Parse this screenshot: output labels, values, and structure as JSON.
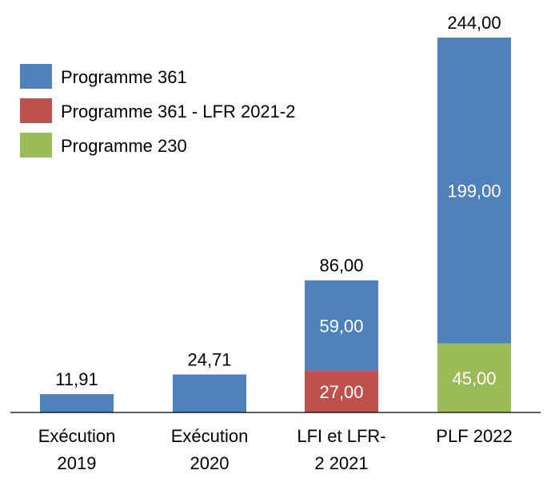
{
  "chart_data": {
    "type": "bar",
    "stacked": true,
    "categories": [
      [
        "Exécution",
        "2019"
      ],
      [
        "Exécution",
        "2020"
      ],
      [
        "LFI et LFR-",
        "2 2021"
      ],
      [
        "PLF 2022"
      ]
    ],
    "series": [
      {
        "name": "Programme 230",
        "color": "#9BBB59",
        "values": [
          0,
          0,
          0,
          45.0
        ],
        "labels": [
          "",
          "",
          "",
          "45,00"
        ]
      },
      {
        "name": "Programme 361 - LFR 2021-2",
        "color": "#C0504D",
        "values": [
          0,
          0,
          27.0,
          0
        ],
        "labels": [
          "",
          "",
          "27,00",
          ""
        ]
      },
      {
        "name": "Programme 361",
        "color": "#4F81BD",
        "values": [
          11.91,
          24.71,
          59.0,
          199.0
        ],
        "labels": [
          "",
          "",
          "59,00",
          "199,00"
        ]
      }
    ],
    "totals": [
      "11,91",
      "24,71",
      "86,00",
      "244,00"
    ],
    "legend": [
      "Programme 361",
      "Programme 361 - LFR 2021-2",
      "Programme 230"
    ],
    "legend_position": "top-left",
    "ylim": [
      0,
      244
    ],
    "grid": false,
    "title": "",
    "xlabel": "",
    "ylabel": ""
  }
}
